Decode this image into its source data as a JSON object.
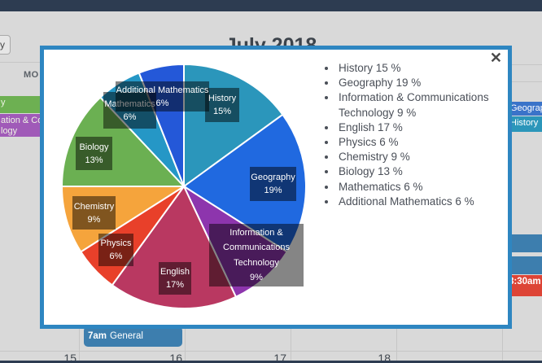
{
  "header": {
    "month_title": "July 2018",
    "weekday_label": "MO",
    "toolbar_button_fragment": "y"
  },
  "modal": {
    "close_label": "✕"
  },
  "chart_data": {
    "type": "pie",
    "start_angle_deg": 0,
    "direction": "clockwise",
    "legend_position": "right",
    "slices": [
      {
        "name": "History",
        "value": 15,
        "color": "#2b96bb",
        "box_lines": [
          "History",
          "15%"
        ]
      },
      {
        "name": "Geography",
        "value": 19,
        "color": "#2069e0",
        "box_lines": [
          "Geography",
          "19%"
        ]
      },
      {
        "name": "Information & Communications Technology",
        "value": 9,
        "color": "#8d35ad",
        "box_lines": [
          "Information &",
          "Communications",
          "Technology",
          "9%"
        ]
      },
      {
        "name": "English",
        "value": 17,
        "color": "#b93861",
        "box_lines": [
          "English",
          "17%"
        ]
      },
      {
        "name": "Physics",
        "value": 6,
        "color": "#e8402a",
        "box_lines": [
          "Physics",
          "6%"
        ]
      },
      {
        "name": "Chemistry",
        "value": 9,
        "color": "#f5a43c",
        "box_lines": [
          "Chemistry",
          "9%"
        ]
      },
      {
        "name": "Biology",
        "value": 13,
        "color": "#6bb052",
        "box_lines": [
          "Biology",
          "13%"
        ]
      },
      {
        "name": "Mathematics",
        "value": 6,
        "color": "#2597c6",
        "box_lines": [
          "Mathematics",
          "6%"
        ]
      },
      {
        "name": "Additional Mathematics",
        "value": 6,
        "color": "#2458d8",
        "box_lines": [
          "Additional Mathematics",
          "6%"
        ]
      }
    ],
    "legend_items": [
      "History 15 %",
      "Geography 19 %",
      "Information & Communications Technology 9 %",
      "English 17 %",
      "Physics 6 %",
      "Chemistry 9 %",
      "Biology 13 %",
      "Mathematics 6 %",
      "Additional Mathematics 6 %"
    ]
  },
  "calendar": {
    "left_events": [
      {
        "text_lines": [
          "y"
        ],
        "color": "#6db052"
      },
      {
        "text_lines": [
          "ation & Co",
          "logy"
        ],
        "color": "#a05ab8"
      }
    ],
    "right_events": [
      {
        "label": "Geography",
        "color": "#3a73c9",
        "bold": false
      },
      {
        "label": "History",
        "color": "#2b96ba",
        "bold": false
      },
      {
        "label": "",
        "color": "#3d7eae",
        "bold": false
      },
      {
        "label": "",
        "color": "#3d7eae",
        "bold": false
      },
      {
        "label": "8:30am",
        "color": "#dd4436",
        "bold": true
      }
    ],
    "bottom_event": {
      "time": "7am",
      "title": "General"
    },
    "dates": [
      "15",
      "16",
      "17",
      "18"
    ]
  }
}
